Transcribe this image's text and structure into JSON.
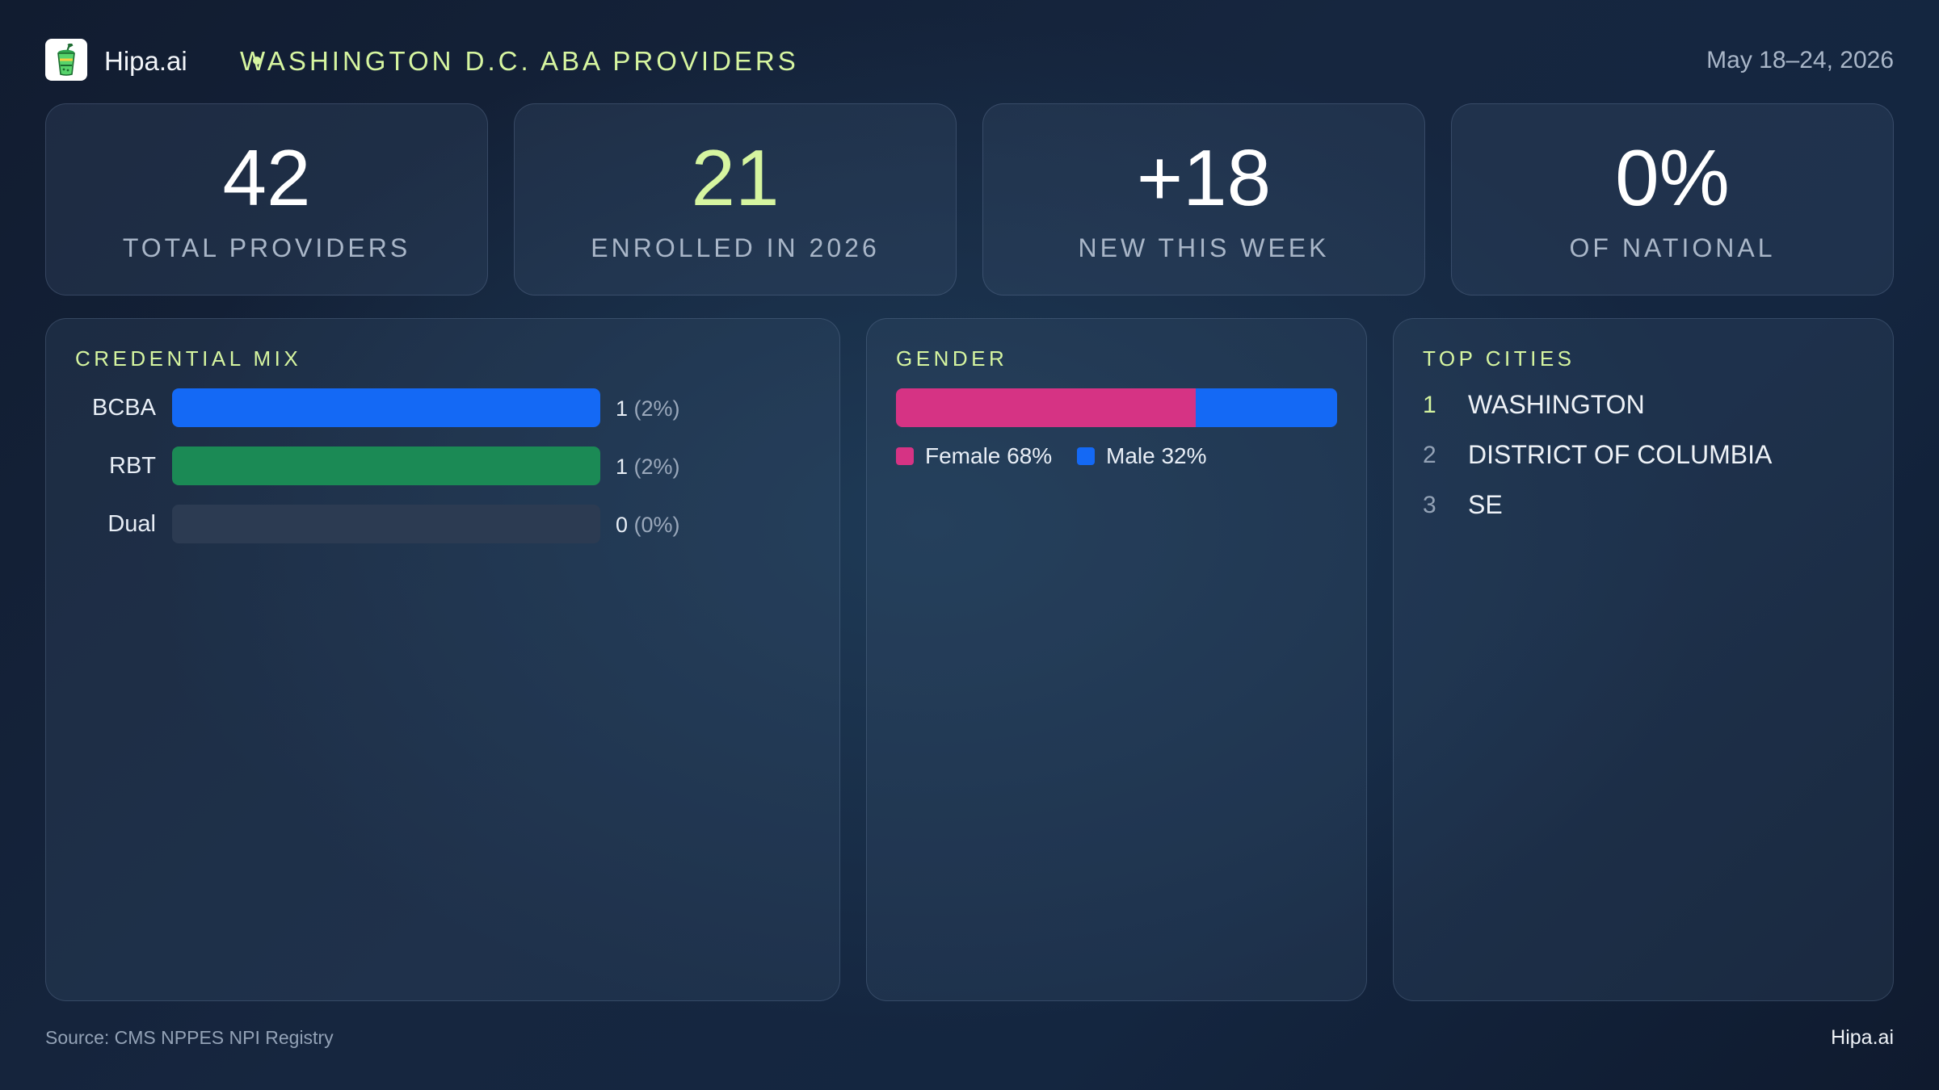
{
  "header": {
    "brand": "Hipa.ai",
    "separator": "•",
    "title": "WASHINGTON D.C. ABA PROVIDERS",
    "date_range": "May 18–24, 2026",
    "logo_icon": "drink-cup-icon"
  },
  "kpis": [
    {
      "value": "42",
      "label": "TOTAL PROVIDERS",
      "accent": false
    },
    {
      "value": "21",
      "label": "ENROLLED IN 2026",
      "accent": true
    },
    {
      "value": "+18",
      "label": "NEW THIS WEEK",
      "accent": false
    },
    {
      "value": "0%",
      "label": "OF NATIONAL",
      "accent": false
    }
  ],
  "credential_mix": {
    "title": "CREDENTIAL MIX",
    "rows": [
      {
        "label": "BCBA",
        "count": "1",
        "pct": "(2%)",
        "fill": 1.0,
        "color": "#1469f5"
      },
      {
        "label": "RBT",
        "count": "1",
        "pct": "(2%)",
        "fill": 1.0,
        "color": "#1b8a55"
      },
      {
        "label": "Dual",
        "count": "0",
        "pct": "(0%)",
        "fill": 0.0,
        "color": "#2c3b52"
      }
    ]
  },
  "gender": {
    "title": "GENDER",
    "segments": [
      {
        "label": "Female 68%",
        "share": 0.68,
        "color": "#d63384"
      },
      {
        "label": "Male 32%",
        "share": 0.32,
        "color": "#1469f5"
      }
    ]
  },
  "top_cities": {
    "title": "TOP CITIES",
    "items": [
      {
        "rank": "1",
        "name": "WASHINGTON",
        "rank_color": "#d6f5a0"
      },
      {
        "rank": "2",
        "name": "DISTRICT OF COLUMBIA",
        "rank_color": "#93a2b6"
      },
      {
        "rank": "3",
        "name": "SE",
        "rank_color": "#93a2b6"
      }
    ]
  },
  "footer": {
    "source": "Source: CMS NPPES NPI Registry",
    "brand": "Hipa.ai"
  },
  "colors": {
    "accent": "#d6f5a0",
    "female": "#d63384",
    "male": "#1469f5",
    "rbt": "#1b8a55"
  }
}
